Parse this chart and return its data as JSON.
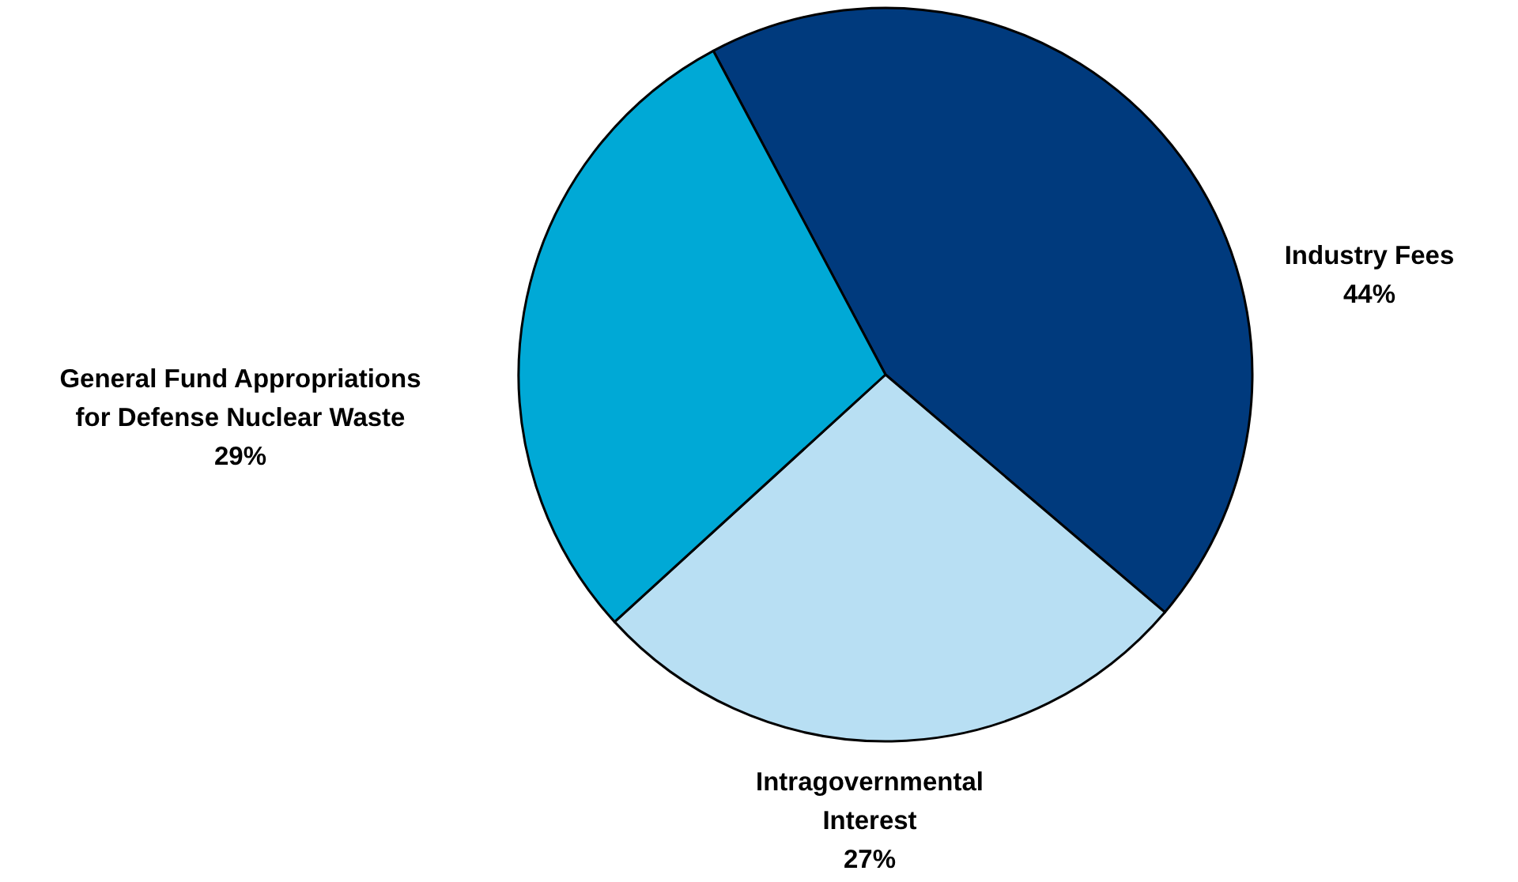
{
  "chart_data": {
    "type": "pie",
    "categories": [
      "Industry Fees",
      "Intragovernmental Interest",
      "General Fund Appropriations for Defense Nuclear Waste"
    ],
    "values": [
      44,
      27,
      29
    ],
    "value_labels": [
      "44%",
      "27%",
      "29%"
    ],
    "colors": [
      "#003a7d",
      "#b8dff3",
      "#00a9d6"
    ]
  }
}
